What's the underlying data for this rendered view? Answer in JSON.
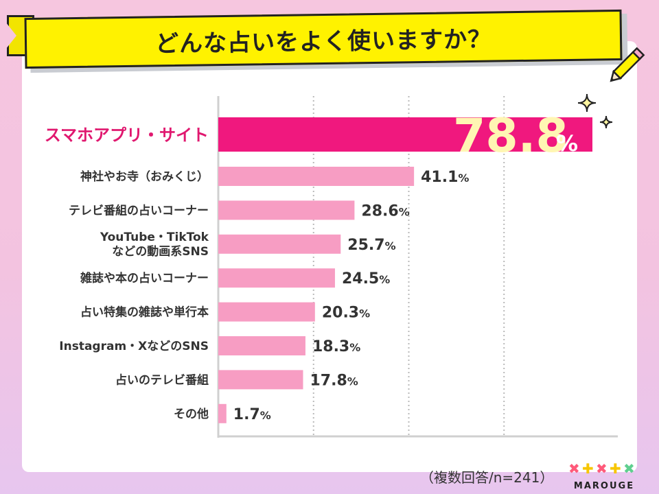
{
  "title": "どんな占いをよく使いますか？",
  "footnote": "（複数回答/n=241）",
  "logo": {
    "text": "MAROUGE"
  },
  "colors": {
    "highlight_bar": "#f0187e",
    "bar": "#f79dc3",
    "highlight_label": "#e0186f",
    "banner": "#fff200",
    "value_big": "#fff6b3"
  },
  "icons": [
    "sparkle-icon",
    "pencil-icon"
  ],
  "chart_data": {
    "type": "bar",
    "orientation": "horizontal",
    "categories": [
      "スマホアプリ・サイト",
      "神社やお寺（おみくじ）",
      "テレビ番組の占いコーナー",
      "YouTube・TikTok\nなどの動画系SNS",
      "雑誌や本の占いコーナー",
      "占い特集の雑誌や単行本",
      "Instagram・XなどのSNS",
      "占いのテレビ番組",
      "その他"
    ],
    "values": [
      78.8,
      41.1,
      28.6,
      25.7,
      24.5,
      20.3,
      18.3,
      17.8,
      1.7
    ],
    "unit": "%",
    "highlight_index": 0,
    "xlim": [
      0,
      80
    ],
    "grid": true
  }
}
